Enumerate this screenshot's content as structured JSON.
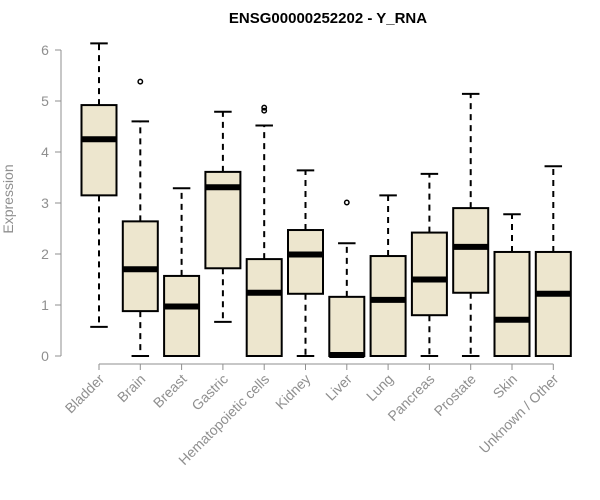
{
  "chart_data": {
    "type": "boxplot",
    "title": "ENSG00000252202 - Y_RNA",
    "xlabel": "",
    "ylabel": "Expression",
    "ylim": [
      0,
      6.2
    ],
    "yticks": [
      0,
      1,
      2,
      3,
      4,
      5,
      6
    ],
    "grid": false,
    "legend": "none",
    "colors": {
      "box_fill": "#ede6ce",
      "box_stroke": "#000000",
      "axis": "#8f8f8f",
      "text": "#8f8f8f",
      "title": "#000000"
    },
    "categories": [
      "Bladder",
      "Brain",
      "Breast",
      "Gastric",
      "Hematopoietic cells",
      "Kidney",
      "Liver",
      "Lung",
      "Pancreas",
      "Prostate",
      "Skin",
      "Unknown / Other"
    ],
    "boxes": [
      {
        "category": "Bladder",
        "min": 0.57,
        "q1": 3.15,
        "median": 4.25,
        "q3": 4.92,
        "max": 6.13,
        "outliers": []
      },
      {
        "category": "Brain",
        "min": 0.0,
        "q1": 0.88,
        "median": 1.7,
        "q3": 2.64,
        "max": 4.6,
        "outliers": [
          5.38
        ]
      },
      {
        "category": "Breast",
        "min": 0.0,
        "q1": 0.0,
        "median": 0.97,
        "q3": 1.57,
        "max": 3.29,
        "outliers": []
      },
      {
        "category": "Gastric",
        "min": 0.67,
        "q1": 1.72,
        "median": 3.31,
        "q3": 3.61,
        "max": 4.79,
        "outliers": []
      },
      {
        "category": "Hematopoietic cells",
        "min": 0.0,
        "q1": 0.0,
        "median": 1.24,
        "q3": 1.9,
        "max": 4.52,
        "outliers": [
          4.87,
          4.81
        ]
      },
      {
        "category": "Kidney",
        "min": 0.0,
        "q1": 1.22,
        "median": 1.99,
        "q3": 2.47,
        "max": 3.64,
        "outliers": []
      },
      {
        "category": "Liver",
        "min": 0.0,
        "q1": 0.0,
        "median": 0.02,
        "q3": 1.16,
        "max": 2.21,
        "outliers": [
          3.01
        ]
      },
      {
        "category": "Lung",
        "min": 0.0,
        "q1": 0.0,
        "median": 1.1,
        "q3": 1.96,
        "max": 3.15,
        "outliers": []
      },
      {
        "category": "Pancreas",
        "min": 0.0,
        "q1": 0.8,
        "median": 1.5,
        "q3": 2.42,
        "max": 3.57,
        "outliers": []
      },
      {
        "category": "Prostate",
        "min": 0.0,
        "q1": 1.24,
        "median": 2.14,
        "q3": 2.9,
        "max": 5.14,
        "outliers": []
      },
      {
        "category": "Skin",
        "min": 0.0,
        "q1": 0.0,
        "median": 0.71,
        "q3": 2.04,
        "max": 2.78,
        "outliers": []
      },
      {
        "category": "Unknown / Other",
        "min": 0.0,
        "q1": 0.0,
        "median": 1.22,
        "q3": 2.04,
        "max": 3.72,
        "outliers": []
      }
    ]
  }
}
